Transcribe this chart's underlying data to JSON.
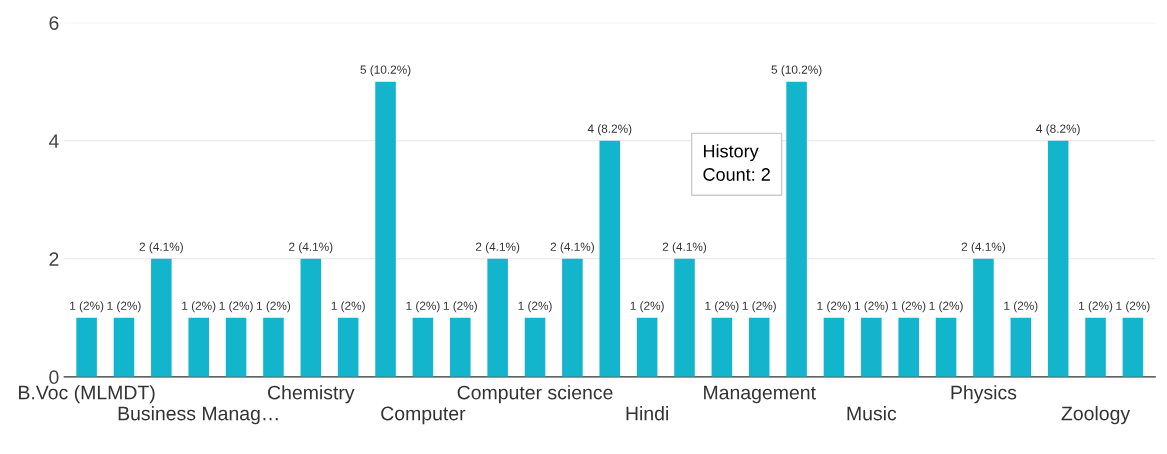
{
  "chart_data": {
    "type": "bar",
    "categories": [
      "B.Voc (MLMDT)",
      null,
      null,
      "Business Manag…",
      null,
      null,
      "Chemistry",
      null,
      null,
      "Computer",
      null,
      null,
      "Computer science",
      null,
      null,
      "Hindi",
      null,
      null,
      "Management",
      null,
      null,
      "Music",
      null,
      null,
      "Physics",
      null,
      null,
      "Zoology",
      null
    ],
    "values": [
      1,
      1,
      2,
      1,
      1,
      1,
      2,
      1,
      5,
      1,
      1,
      2,
      1,
      2,
      4,
      1,
      2,
      1,
      1,
      5,
      1,
      1,
      1,
      1,
      2,
      1,
      4,
      1,
      1
    ],
    "value_labels": [
      "1 (2%)",
      "1 (2%)",
      "2 (4.1%)",
      "1 (2%)",
      "1 (2%)",
      "1 (2%)",
      "2 (4.1%)",
      "1 (2%)",
      "5 (10.2%)",
      "1 (2%)",
      "1 (2%)",
      "2 (4.1%)",
      "1 (2%)",
      "2 (4.1%)",
      "4 (8.2%)",
      "1 (2%)",
      "2 (4.1%)",
      "1 (2%)",
      "1 (2%)",
      "5 (10.2%)",
      "1 (2%)",
      "1 (2%)",
      "1 (2%)",
      "1 (2%)",
      "2 (4.1%)",
      "1 (2%)",
      "4 (8.2%)",
      "1 (2%)",
      "1 (2%)"
    ],
    "color": "#12b5cb",
    "ylim": [
      0,
      6
    ],
    "yticks": [
      0,
      2,
      4,
      6
    ],
    "grid": "y",
    "annotations": [
      "History",
      "Count: 2"
    ]
  }
}
